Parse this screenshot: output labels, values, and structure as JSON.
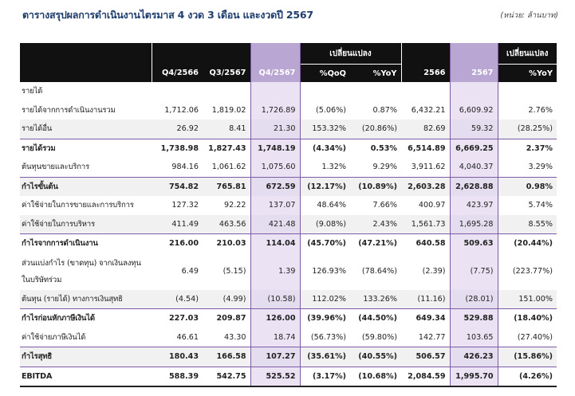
{
  "title": "ตารางสรุปผลการดำเนินงานไตรมาส 4 งวด 3 เดือน และงวดปี 2567",
  "unit_note": "(หน่วย: ล้านบาท)",
  "header": {
    "group_change_q": "เปลี่ยนแปลง",
    "group_change_y": "เปลี่ยนแปลง",
    "cols": [
      "Q4/2566",
      "Q3/2567",
      "Q4/2567",
      "%QoQ",
      "%YoY",
      "2566",
      "2567",
      "%YoY"
    ]
  },
  "rows": [
    {
      "label": "รายได้",
      "values": [
        "",
        "",
        "",
        "",
        "",
        "",
        "",
        ""
      ]
    },
    {
      "label": "รายได้จากการดำเนินงานรวม",
      "values": [
        "1,712.06",
        "1,819.02",
        "1,726.89",
        "(5.06%)",
        "0.87%",
        "6,432.21",
        "6,609.92",
        "2.76%"
      ]
    },
    {
      "label": "รายได้อื่น",
      "values": [
        "26.92",
        "8.41",
        "21.30",
        "153.32%",
        "(20.86%)",
        "82.69",
        "59.32",
        "(28.25%)"
      ]
    },
    {
      "label": "รายได้รวม",
      "values": [
        "1,738.98",
        "1,827.43",
        "1,748.19",
        "(4.34%)",
        "0.53%",
        "6,514.89",
        "6,669.25",
        "2.37%"
      ]
    },
    {
      "label": "ต้นทุนขายและบริการ",
      "values": [
        "984.16",
        "1,061.62",
        "1,075.60",
        "1.32%",
        "9.29%",
        "3,911.62",
        "4,040.37",
        "3.29%"
      ]
    },
    {
      "label": "กำไรขั้นต้น",
      "values": [
        "754.82",
        "765.81",
        "672.59",
        "(12.17%)",
        "(10.89%)",
        "2,603.28",
        "2,628.88",
        "0.98%"
      ]
    },
    {
      "label": "ค่าใช้จ่ายในการขายและการบริการ",
      "values": [
        "127.32",
        "92.22",
        "137.07",
        "48.64%",
        "7.66%",
        "400.97",
        "423.97",
        "5.74%"
      ]
    },
    {
      "label": "ค่าใช้จ่ายในการบริหาร",
      "values": [
        "411.49",
        "463.56",
        "421.48",
        "(9.08%)",
        "2.43%",
        "1,561.73",
        "1,695.28",
        "8.55%"
      ]
    },
    {
      "label": "กำไรจากการดำเนินงาน",
      "values": [
        "216.00",
        "210.03",
        "114.04",
        "(45.70%)",
        "(47.21%)",
        "640.58",
        "509.63",
        "(20.44%)"
      ]
    },
    {
      "label": "ส่วนแบ่งกำไร (ขาดทุน) จากเงินลงทุนในบริษัทร่วม",
      "values": [
        "6.49",
        "(5.15)",
        "1.39",
        "126.93%",
        "(78.64%)",
        "(2.39)",
        "(7.75)",
        "(223.77%)"
      ]
    },
    {
      "label": "ต้นทุน (รายได้) ทางการเงินสุทธิ",
      "values": [
        "(4.54)",
        "(4.99)",
        "(10.58)",
        "112.02%",
        "133.26%",
        "(11.16)",
        "(28.01)",
        "151.00%"
      ]
    },
    {
      "label": "กำไรก่อนหักภาษีเงินได้",
      "values": [
        "227.03",
        "209.87",
        "126.00",
        "(39.96%)",
        "(44.50%)",
        "649.34",
        "529.88",
        "(18.40%)"
      ]
    },
    {
      "label": "ค่าใช้จ่ายภาษีเงินได้",
      "values": [
        "46.61",
        "43.30",
        "18.74",
        "(56.73%)",
        "(59.80%)",
        "142.77",
        "103.65",
        "(27.40%)"
      ]
    },
    {
      "label": "กำไรสุทธิ",
      "values": [
        "180.43",
        "166.58",
        "107.27",
        "(35.61%)",
        "(40.55%)",
        "506.57",
        "426.23",
        "(15.86%)"
      ]
    },
    {
      "label": "EBITDA",
      "values": [
        "588.39",
        "542.75",
        "525.52",
        "(3.17%)",
        "(10.68%)",
        "2,084.59",
        "1,995.70",
        "(4.26%)"
      ]
    }
  ],
  "colors": {
    "header_bg": "#111111",
    "highlight": "#b9a6d2",
    "highlight_border": "#7a5da6",
    "title": "#1f3e6e"
  }
}
